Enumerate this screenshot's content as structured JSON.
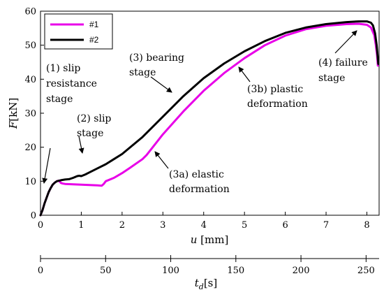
{
  "chart_data": {
    "type": "line",
    "xlabel": "u",
    "xunit": "[mm]",
    "ylabel": "F",
    "yunit": "[kN]",
    "secondary_xlabel": "t",
    "secondary_xlabel_sub": "d",
    "secondary_xunit": "[s]",
    "xlim": [
      0,
      8.3
    ],
    "ylim": [
      0,
      60
    ],
    "secondary_xlim": [
      0,
      260
    ],
    "xticks": [
      "0",
      "1",
      "2",
      "3",
      "4",
      "5",
      "6",
      "7",
      "8"
    ],
    "yticks": [
      "0",
      "10",
      "20",
      "30",
      "40",
      "50",
      "60"
    ],
    "secondary_xticks": [
      "0",
      "50",
      "100",
      "150",
      "200",
      "250"
    ],
    "grid": false,
    "legend_position": "top-left",
    "series": [
      {
        "name": "#1",
        "color": "#e800e8",
        "points": [
          [
            0.0,
            0.0
          ],
          [
            0.05,
            1.5
          ],
          [
            0.1,
            3.5
          ],
          [
            0.15,
            5.2
          ],
          [
            0.2,
            6.8
          ],
          [
            0.25,
            8.0
          ],
          [
            0.3,
            9.0
          ],
          [
            0.35,
            9.6
          ],
          [
            0.4,
            10.0
          ],
          [
            0.45,
            10.2
          ],
          [
            0.5,
            9.5
          ],
          [
            0.55,
            9.3
          ],
          [
            0.6,
            9.2
          ],
          [
            0.8,
            9.1
          ],
          [
            1.0,
            9.0
          ],
          [
            1.2,
            8.9
          ],
          [
            1.4,
            8.8
          ],
          [
            1.5,
            8.7
          ],
          [
            1.55,
            9.2
          ],
          [
            1.6,
            10.0
          ],
          [
            1.8,
            11.0
          ],
          [
            2.0,
            12.4
          ],
          [
            2.2,
            14.0
          ],
          [
            2.5,
            16.5
          ],
          [
            2.6,
            17.7
          ],
          [
            3.0,
            23.8
          ],
          [
            3.5,
            30.5
          ],
          [
            4.0,
            36.6
          ],
          [
            4.5,
            41.8
          ],
          [
            5.0,
            46.2
          ],
          [
            5.5,
            50.0
          ],
          [
            6.0,
            52.8
          ],
          [
            6.5,
            54.7
          ],
          [
            7.0,
            55.7
          ],
          [
            7.5,
            56.2
          ],
          [
            7.8,
            56.3
          ],
          [
            8.0,
            56.0
          ],
          [
            8.1,
            55.2
          ],
          [
            8.18,
            53.0
          ],
          [
            8.22,
            50.0
          ],
          [
            8.25,
            47.0
          ],
          [
            8.27,
            44.0
          ]
        ]
      },
      {
        "name": "#2",
        "color": "#000000",
        "points": [
          [
            0.0,
            0.0
          ],
          [
            0.05,
            1.5
          ],
          [
            0.1,
            3.5
          ],
          [
            0.15,
            5.2
          ],
          [
            0.2,
            6.8
          ],
          [
            0.25,
            8.0
          ],
          [
            0.3,
            9.0
          ],
          [
            0.35,
            9.6
          ],
          [
            0.4,
            10.0
          ],
          [
            0.5,
            10.3
          ],
          [
            0.6,
            10.5
          ],
          [
            0.7,
            10.6
          ],
          [
            0.8,
            11.0
          ],
          [
            0.9,
            11.5
          ],
          [
            0.95,
            11.6
          ],
          [
            1.0,
            11.5
          ],
          [
            1.1,
            12.0
          ],
          [
            1.2,
            12.6
          ],
          [
            1.4,
            13.8
          ],
          [
            1.6,
            15.0
          ],
          [
            1.8,
            16.5
          ],
          [
            2.0,
            18.0
          ],
          [
            2.5,
            23.0
          ],
          [
            3.0,
            29.0
          ],
          [
            3.5,
            35.0
          ],
          [
            4.0,
            40.3
          ],
          [
            4.5,
            44.6
          ],
          [
            5.0,
            48.2
          ],
          [
            5.5,
            51.2
          ],
          [
            6.0,
            53.6
          ],
          [
            6.5,
            55.2
          ],
          [
            7.0,
            56.2
          ],
          [
            7.5,
            56.8
          ],
          [
            7.8,
            57.0
          ],
          [
            8.0,
            57.0
          ],
          [
            8.1,
            56.6
          ],
          [
            8.15,
            55.8
          ],
          [
            8.2,
            53.5
          ],
          [
            8.24,
            50.0
          ],
          [
            8.27,
            46.0
          ],
          [
            8.28,
            44.5
          ]
        ]
      }
    ],
    "annotations": [
      {
        "lines": [
          "(1) slip",
          "resistance",
          "stage"
        ]
      },
      {
        "lines": [
          "(2) slip",
          "stage"
        ]
      },
      {
        "lines": [
          "(3) bearing",
          "stage"
        ]
      },
      {
        "lines": [
          "(3a) elastic",
          "deformation"
        ]
      },
      {
        "lines": [
          "(3b) plastic",
          "deformation"
        ]
      },
      {
        "lines": [
          "(4) failure",
          "stage"
        ]
      }
    ]
  }
}
